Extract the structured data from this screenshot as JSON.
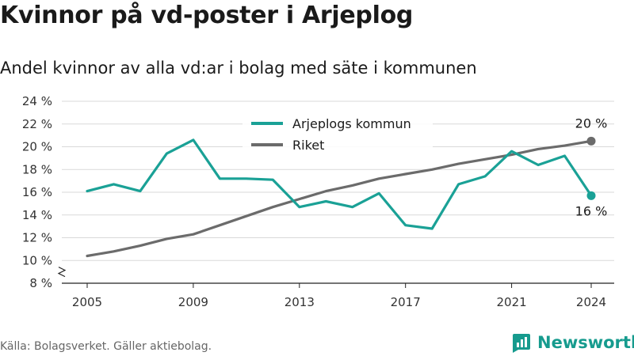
{
  "header": {
    "title": "Kvinnor på vd-poster i Arjeplog",
    "subtitle": "Andel kvinnor av alla vd:ar i bolag med säte i kommunen"
  },
  "footer": {
    "source": "Källa: Bolagsverket. Gäller aktiebolag.",
    "brand": "Newsworthy",
    "brand_icon": "newsworthy-logo-icon"
  },
  "colors": {
    "arjeplog": "#1aa196",
    "riket": "#6b6b6b",
    "grid": "#d9d9d9",
    "axis": "#222222"
  },
  "chart_data": {
    "type": "line",
    "title": "Kvinnor på vd-poster i Arjeplog",
    "subtitle": "Andel kvinnor av alla vd:ar i bolag med säte i kommunen",
    "xlabel": "",
    "ylabel": "",
    "x_ticks": [
      2005,
      2009,
      2013,
      2017,
      2021,
      2024
    ],
    "y_ticks": [
      8,
      10,
      12,
      14,
      16,
      18,
      20,
      22,
      24
    ],
    "y_tick_labels": [
      "8 %",
      "10 %",
      "12 %",
      "14 %",
      "16 %",
      "18 %",
      "20 %",
      "22 %",
      "24 %"
    ],
    "xlim": [
      2005,
      2024
    ],
    "ylim": [
      8,
      24
    ],
    "y_axis_break": true,
    "grid": "horizontal",
    "legend_position": "top-center",
    "x": [
      2005,
      2006,
      2007,
      2008,
      2009,
      2010,
      2011,
      2012,
      2013,
      2014,
      2015,
      2016,
      2017,
      2018,
      2019,
      2020,
      2021,
      2022,
      2023,
      2024
    ],
    "series": [
      {
        "name": "Arjeplogs kommun",
        "color": "#1aa196",
        "values": [
          16.1,
          16.7,
          16.1,
          19.4,
          20.6,
          17.2,
          17.2,
          17.1,
          14.7,
          15.2,
          14.7,
          15.9,
          13.1,
          12.8,
          16.7,
          17.4,
          19.6,
          18.4,
          19.2,
          15.7
        ],
        "end_label": "16 %"
      },
      {
        "name": "Riket",
        "color": "#6b6b6b",
        "values": [
          10.4,
          10.8,
          11.3,
          11.9,
          12.3,
          13.1,
          13.9,
          14.7,
          15.4,
          16.1,
          16.6,
          17.2,
          17.6,
          18.0,
          18.5,
          18.9,
          19.3,
          19.8,
          20.1,
          20.5
        ],
        "end_label": "20 %"
      }
    ]
  }
}
